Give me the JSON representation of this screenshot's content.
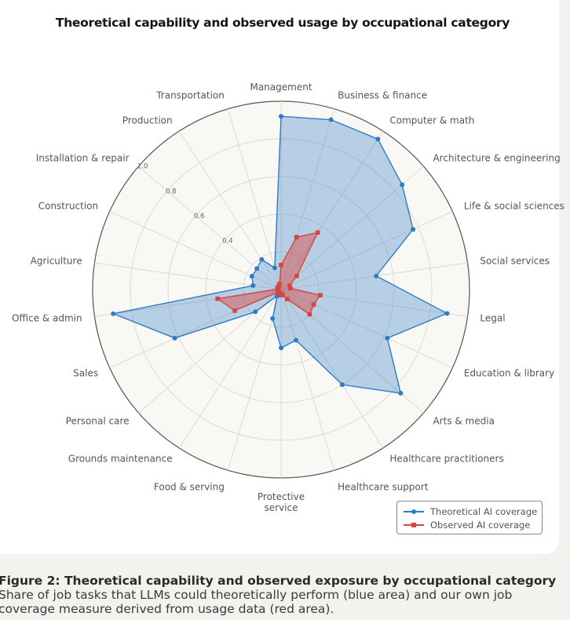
{
  "chart_data": {
    "type": "radar",
    "title": "Theoretical capability and observed usage by occupational category",
    "categories": [
      "Management",
      "Business & finance",
      "Computer & math",
      "Architecture & engineering",
      "Life & social sciences",
      "Social services",
      "Legal",
      "Education & library",
      "Arts & media",
      "Healthcare practitioners",
      "Healthcare support",
      "Protective service",
      "Food & serving",
      "Grounds maintenance",
      "Personal care",
      "Sales",
      "Office & admin",
      "Agriculture",
      "Construction",
      "Installation & repair",
      "Production",
      "Transportation"
    ],
    "radial_ticks": [
      "0.4",
      "0.6",
      "0.8",
      "1.0"
    ],
    "rlim": [
      0,
      1.0
    ],
    "grid": true,
    "legend_position": "bottom-right",
    "series": [
      {
        "name": "Theoretical AI coverage",
        "color": "#2f7bc4",
        "marker": "circle",
        "values": [
          0.92,
          0.94,
          0.95,
          0.85,
          0.77,
          0.51,
          0.89,
          0.62,
          0.84,
          0.6,
          0.28,
          0.31,
          0.16,
          0.04,
          0.18,
          0.62,
          0.9,
          0.15,
          0.17,
          0.17,
          0.19,
          0.12
        ]
      },
      {
        "name": "Observed AI coverage",
        "color": "#d9443f",
        "marker": "square",
        "values": [
          0.13,
          0.29,
          0.36,
          0.11,
          0.05,
          0.05,
          0.21,
          0.19,
          0.2,
          0.06,
          0.03,
          0.03,
          0.02,
          0.02,
          0.02,
          0.27,
          0.34,
          0.02,
          0.02,
          0.02,
          0.02,
          0.03
        ]
      }
    ]
  },
  "caption": {
    "heading": "Figure 2: Theoretical capability and observed exposure by occupational category",
    "text": "Share of job tasks that LLMs could theoretically perform (blue area) and our own job coverage measure derived from usage data (red area)."
  }
}
